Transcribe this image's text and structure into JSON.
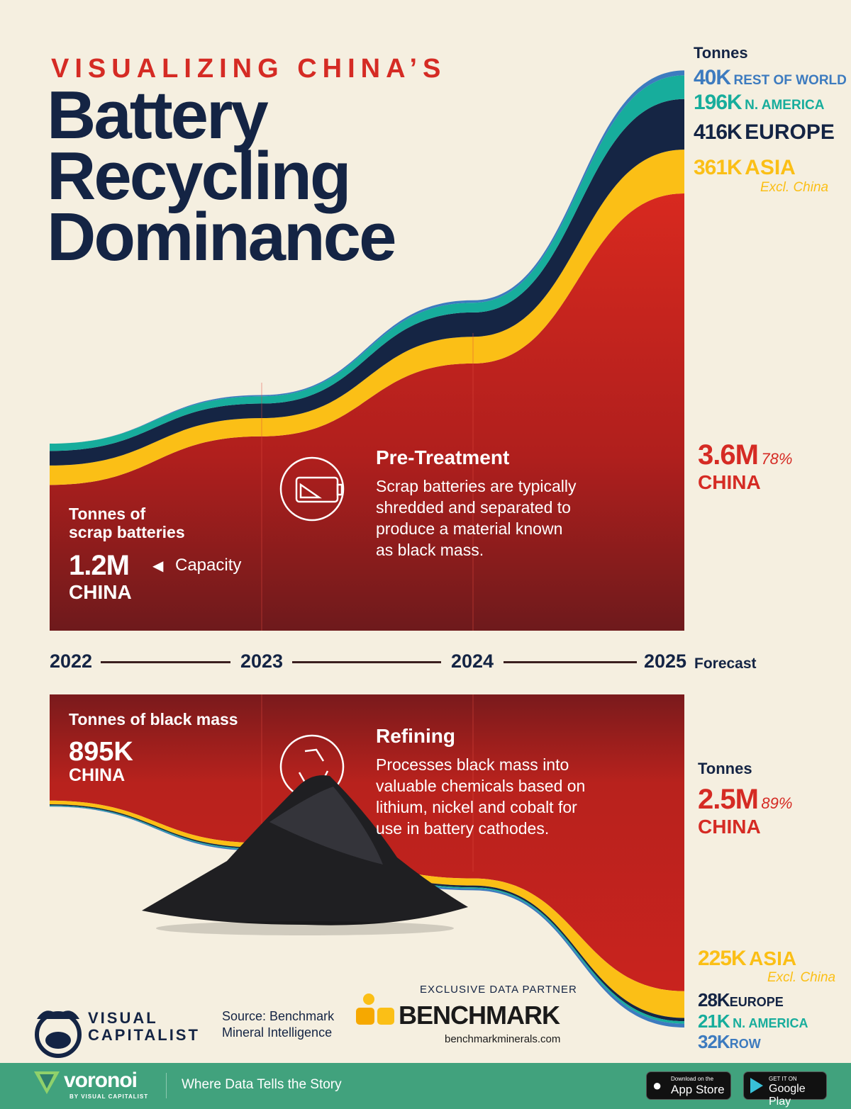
{
  "header": {
    "kicker": "VISUALIZING CHINA’S",
    "title_lines": [
      "Battery",
      "Recycling",
      "Dominance"
    ]
  },
  "top_legend": {
    "unit": "Tonnes",
    "row": {
      "value": "40K",
      "label": "REST OF WORLD"
    },
    "na": {
      "value": "196K",
      "label": "N. AMERICA"
    },
    "europe": {
      "value": "416K",
      "label": "EUROPE"
    },
    "asia": {
      "value": "361K",
      "label": "ASIA",
      "note": "Excl. China"
    },
    "china": {
      "value": "3.6M",
      "share": "78%",
      "label": "CHINA"
    }
  },
  "top_left": {
    "heading_1": "Tonnes of",
    "heading_2": "scrap batteries",
    "value": "1.2M",
    "arrow": "◀",
    "capacity": "Capacity",
    "label": "CHINA"
  },
  "pretreatment": {
    "title": "Pre-Treatment",
    "body_lines": [
      "Scrap batteries are typically",
      "shredded and separated to",
      "produce a material known",
      "as black mass."
    ]
  },
  "timeline": {
    "years": [
      "2022",
      "2023",
      "2024",
      "2025"
    ],
    "forecast": "Forecast"
  },
  "bottom_left": {
    "heading": "Tonnes of black mass",
    "value": "895K",
    "label": "CHINA"
  },
  "refining": {
    "title": "Refining",
    "body_lines": [
      "Processes black mass into",
      "valuable chemicals based on",
      "lithium, nickel and cobalt for",
      "use in battery cathodes."
    ]
  },
  "bottom_legend": {
    "unit": "Tonnes",
    "china": {
      "value": "2.5M",
      "share": "89%",
      "label": "CHINA"
    },
    "asia": {
      "value": "225K",
      "label": "ASIA",
      "note": "Excl. China"
    },
    "europe": {
      "value": "28K",
      "label": "EUROPE"
    },
    "na": {
      "value": "21K",
      "label": "N. AMERICA"
    },
    "row": {
      "value": "32K",
      "label": "ROW"
    }
  },
  "credits": {
    "vc_1": "VISUAL",
    "vc_2": "CAPITALIST",
    "source_1": "Source: Benchmark",
    "source_2": "Mineral Intelligence",
    "partner": "EXCLUSIVE DATA PARTNER",
    "benchmark": "BENCHMARK",
    "url": "benchmarkminerals.com"
  },
  "footer": {
    "brand": "voronoi",
    "brand_sub": "BY VISUAL CAPITALIST",
    "tagline": "Where Data Tells the Story",
    "appstore_1": "Download on the",
    "appstore_2": "App Store",
    "gplay_1": "GET IT ON",
    "gplay_2": "Google Play"
  },
  "colors": {
    "china": "#c9231e",
    "asia": "#fbbf16",
    "europe": "#152544",
    "na": "#17ad9c",
    "row": "#3d7bbf",
    "bg": "#f5efe0"
  },
  "chart_data": [
    {
      "type": "area",
      "title": "Battery recycling pre-treatment capacity (tonnes of scrap batteries)",
      "x": [
        "2022",
        "2023",
        "2024",
        "2025"
      ],
      "unit": "million tonnes",
      "series": [
        {
          "name": "China",
          "values": [
            1.2,
            1.6,
            2.2,
            3.6
          ]
        },
        {
          "name": "Asia excl. China",
          "values": [
            0.16,
            0.15,
            0.22,
            0.361
          ]
        },
        {
          "name": "Europe",
          "values": [
            0.12,
            0.12,
            0.2,
            0.416
          ]
        },
        {
          "name": "N. America",
          "values": [
            0.06,
            0.06,
            0.08,
            0.196
          ]
        },
        {
          "name": "Rest of World",
          "values": [
            0.0,
            0.01,
            0.02,
            0.04
          ]
        }
      ]
    },
    {
      "type": "area",
      "title": "Battery recycling refining capacity (tonnes of black mass)",
      "x": [
        "2022",
        "2023",
        "2024",
        "2025"
      ],
      "unit": "million tonnes",
      "series": [
        {
          "name": "China",
          "values": [
            0.895,
            1.25,
            1.55,
            2.5
          ]
        },
        {
          "name": "Asia excl. China",
          "values": [
            0.03,
            0.04,
            0.06,
            0.225
          ]
        },
        {
          "name": "Europe",
          "values": [
            0.01,
            0.01,
            0.015,
            0.028
          ]
        },
        {
          "name": "N. America",
          "values": [
            0.005,
            0.008,
            0.01,
            0.021
          ]
        },
        {
          "name": "Rest of World",
          "values": [
            0.005,
            0.01,
            0.015,
            0.032
          ]
        }
      ]
    }
  ]
}
